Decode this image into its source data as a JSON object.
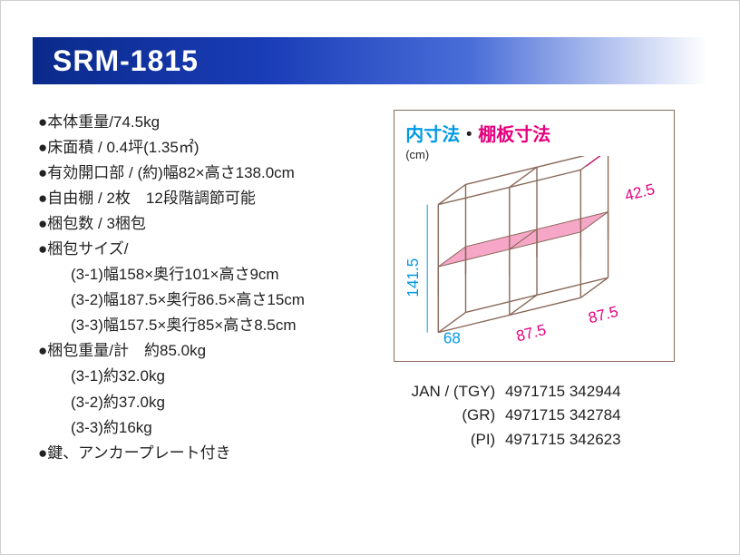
{
  "header": {
    "title": "SRM-1815"
  },
  "specs": {
    "rows": [
      {
        "bullet": "●",
        "text": "本体重量/74.5kg"
      },
      {
        "bullet": "●",
        "text": "床面積 / 0.4坪(1.35㎡)"
      },
      {
        "bullet": "●",
        "text": "有効開口部 / (約)幅82×高さ138.0cm"
      },
      {
        "bullet": "●",
        "text": "自由棚 / 2枚　12段階調節可能"
      },
      {
        "bullet": "●",
        "text": "梱包数 / 3梱包"
      },
      {
        "bullet": "●",
        "text": "梱包サイズ/"
      },
      {
        "indent": true,
        "text": "(3-1)幅158×奥行101×高さ9cm"
      },
      {
        "indent": true,
        "text": "(3-2)幅187.5×奥行86.5×高さ15cm"
      },
      {
        "indent": true,
        "text": "(3-3)幅157.5×奥行85×高さ8.5cm"
      },
      {
        "bullet": "●",
        "text": "梱包重量/計　約85.0kg"
      },
      {
        "indent": true,
        "text": "(3-1)約32.0kg"
      },
      {
        "indent": true,
        "text": "(3-2)約37.0kg"
      },
      {
        "indent": true,
        "text": "(3-3)約16kg"
      },
      {
        "bullet": "●",
        "text": "鍵、アンカープレート付き"
      }
    ]
  },
  "diagram": {
    "title_a": "内寸法",
    "title_dot": "・",
    "title_b": "棚板寸法",
    "unit": "(cm)",
    "stroke_color": "#8a6a5a",
    "shelf_fill": "#f6a6c7",
    "dim_blue": "#0099e5",
    "dim_pink": "#e6007e",
    "dims": {
      "height": "141.5",
      "depth_front": "68",
      "width_1": "87.5",
      "width_2": "87.5",
      "depth_back": "42.5"
    }
  },
  "jan": {
    "prefix": "JAN /",
    "rows": [
      {
        "variant": "(TGY)",
        "code": "4971715 342944"
      },
      {
        "variant": "(GR)",
        "code": "4971715 342784"
      },
      {
        "variant": "(PI)",
        "code": "4971715 342623"
      }
    ]
  }
}
